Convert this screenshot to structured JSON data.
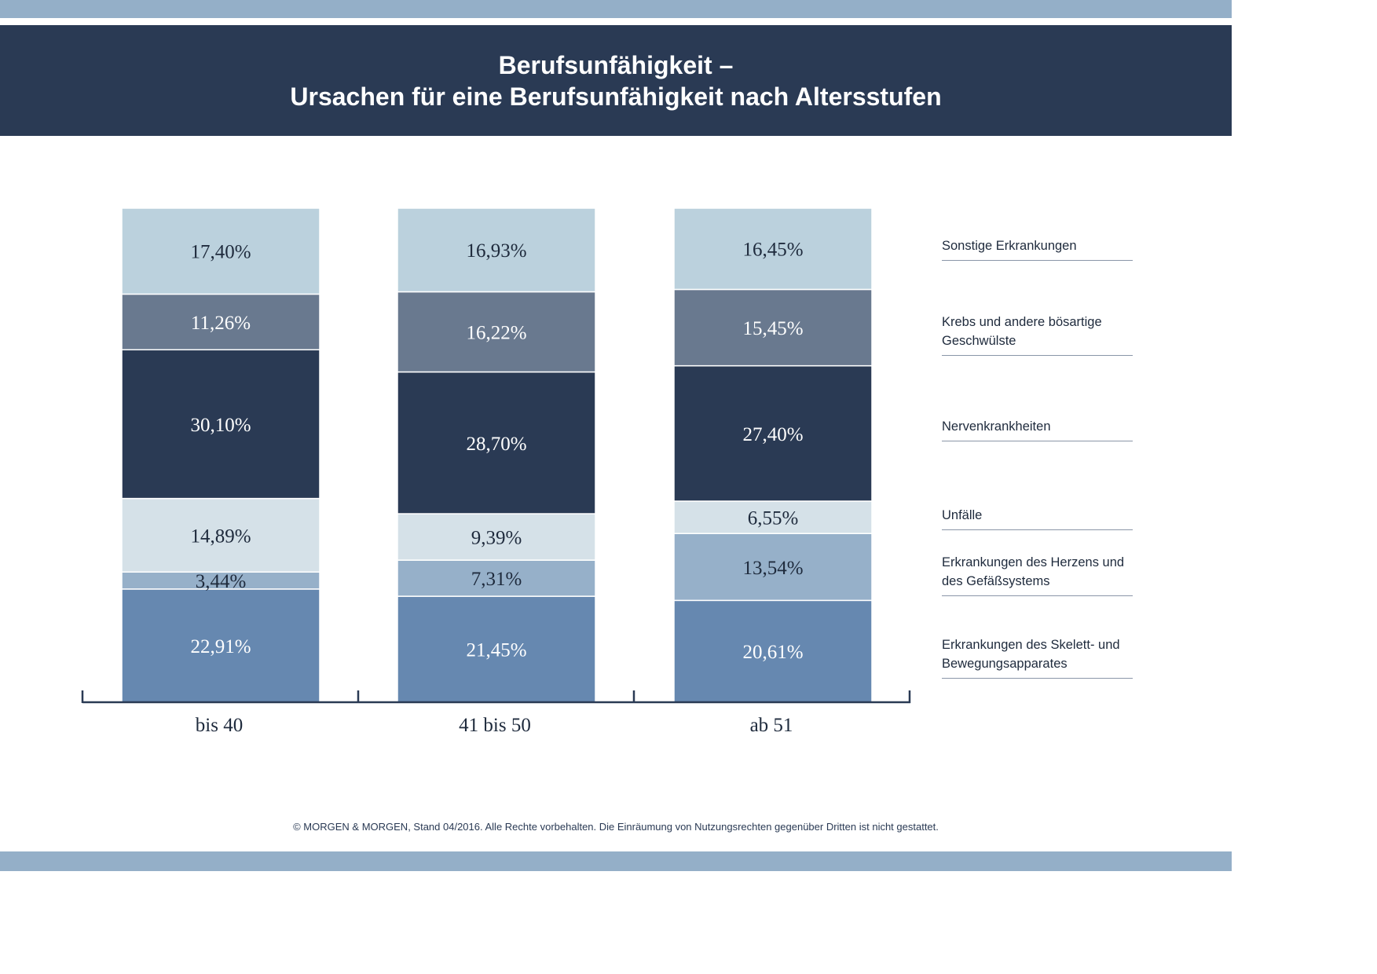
{
  "header": {
    "title_line1": "Berufsunfähigkeit –",
    "title_line2": "Ursachen für eine Berufsunfähigkeit nach Altersstufen"
  },
  "chart_data": {
    "type": "bar",
    "stacked": true,
    "categories": [
      "bis 40",
      "41 bis 50",
      "ab 51"
    ],
    "series": [
      {
        "name": "Erkrankungen des Skelett- und Bewegungsapparates",
        "values": [
          22.91,
          21.45,
          20.61
        ],
        "labels": [
          "22,91%",
          "21,45%",
          "20,61%"
        ],
        "color": "#6688b0",
        "text_color": "#ffffff"
      },
      {
        "name": "Erkrankungen des Herzens und des Gefäßsystems",
        "values": [
          3.44,
          7.31,
          13.54
        ],
        "labels": [
          "3,44%",
          "7,31%",
          "13,54%"
        ],
        "color": "#96b0c9",
        "text_color": "#1e2a3c"
      },
      {
        "name": "Unfälle",
        "values": [
          14.89,
          9.39,
          6.55
        ],
        "labels": [
          "14,89%",
          "9,39%",
          "6,55%"
        ],
        "color": "#d5e1e8",
        "text_color": "#1e2a3c"
      },
      {
        "name": "Nervenkrankheiten",
        "values": [
          30.1,
          28.7,
          27.4
        ],
        "labels": [
          "30,10%",
          "28,70%",
          "27,40%"
        ],
        "color": "#2a3a54",
        "text_color": "#ffffff"
      },
      {
        "name": "Krebs und andere bösartige Geschwülste",
        "values": [
          11.26,
          16.22,
          15.45
        ],
        "labels": [
          "11,26%",
          "16,22%",
          "15,45%"
        ],
        "color": "#69798f",
        "text_color": "#ffffff"
      },
      {
        "name": "Sonstige Erkrankungen",
        "values": [
          17.4,
          16.93,
          16.45
        ],
        "labels": [
          "17,40%",
          "16,93%",
          "16,45%"
        ],
        "color": "#bbd1dd",
        "text_color": "#1e2a3c"
      }
    ],
    "ylim": [
      0,
      100
    ],
    "grid": false,
    "legend_position": "right"
  },
  "legend": [
    {
      "label": "Sonstige Erkrankungen"
    },
    {
      "label": "Krebs und andere bösartige\nGeschwülste"
    },
    {
      "label": "Nervenkrankheiten"
    },
    {
      "label": "Unfälle"
    },
    {
      "label": "Erkrankungen des Herzens und\ndes Gefäßsystems"
    },
    {
      "label": "Erkrankungen des Skelett- und\nBewegungsapparates"
    }
  ],
  "footer": {
    "note": "© MORGEN & MORGEN, Stand 04/2016. Alle Rechte vorbehalten. Die Einräumung von Nutzungsrechten gegenüber Dritten ist nicht gestattet."
  },
  "colors": {
    "band": "#94afc8",
    "header_bg": "#2a3a54",
    "axis": "#2a3a54"
  }
}
